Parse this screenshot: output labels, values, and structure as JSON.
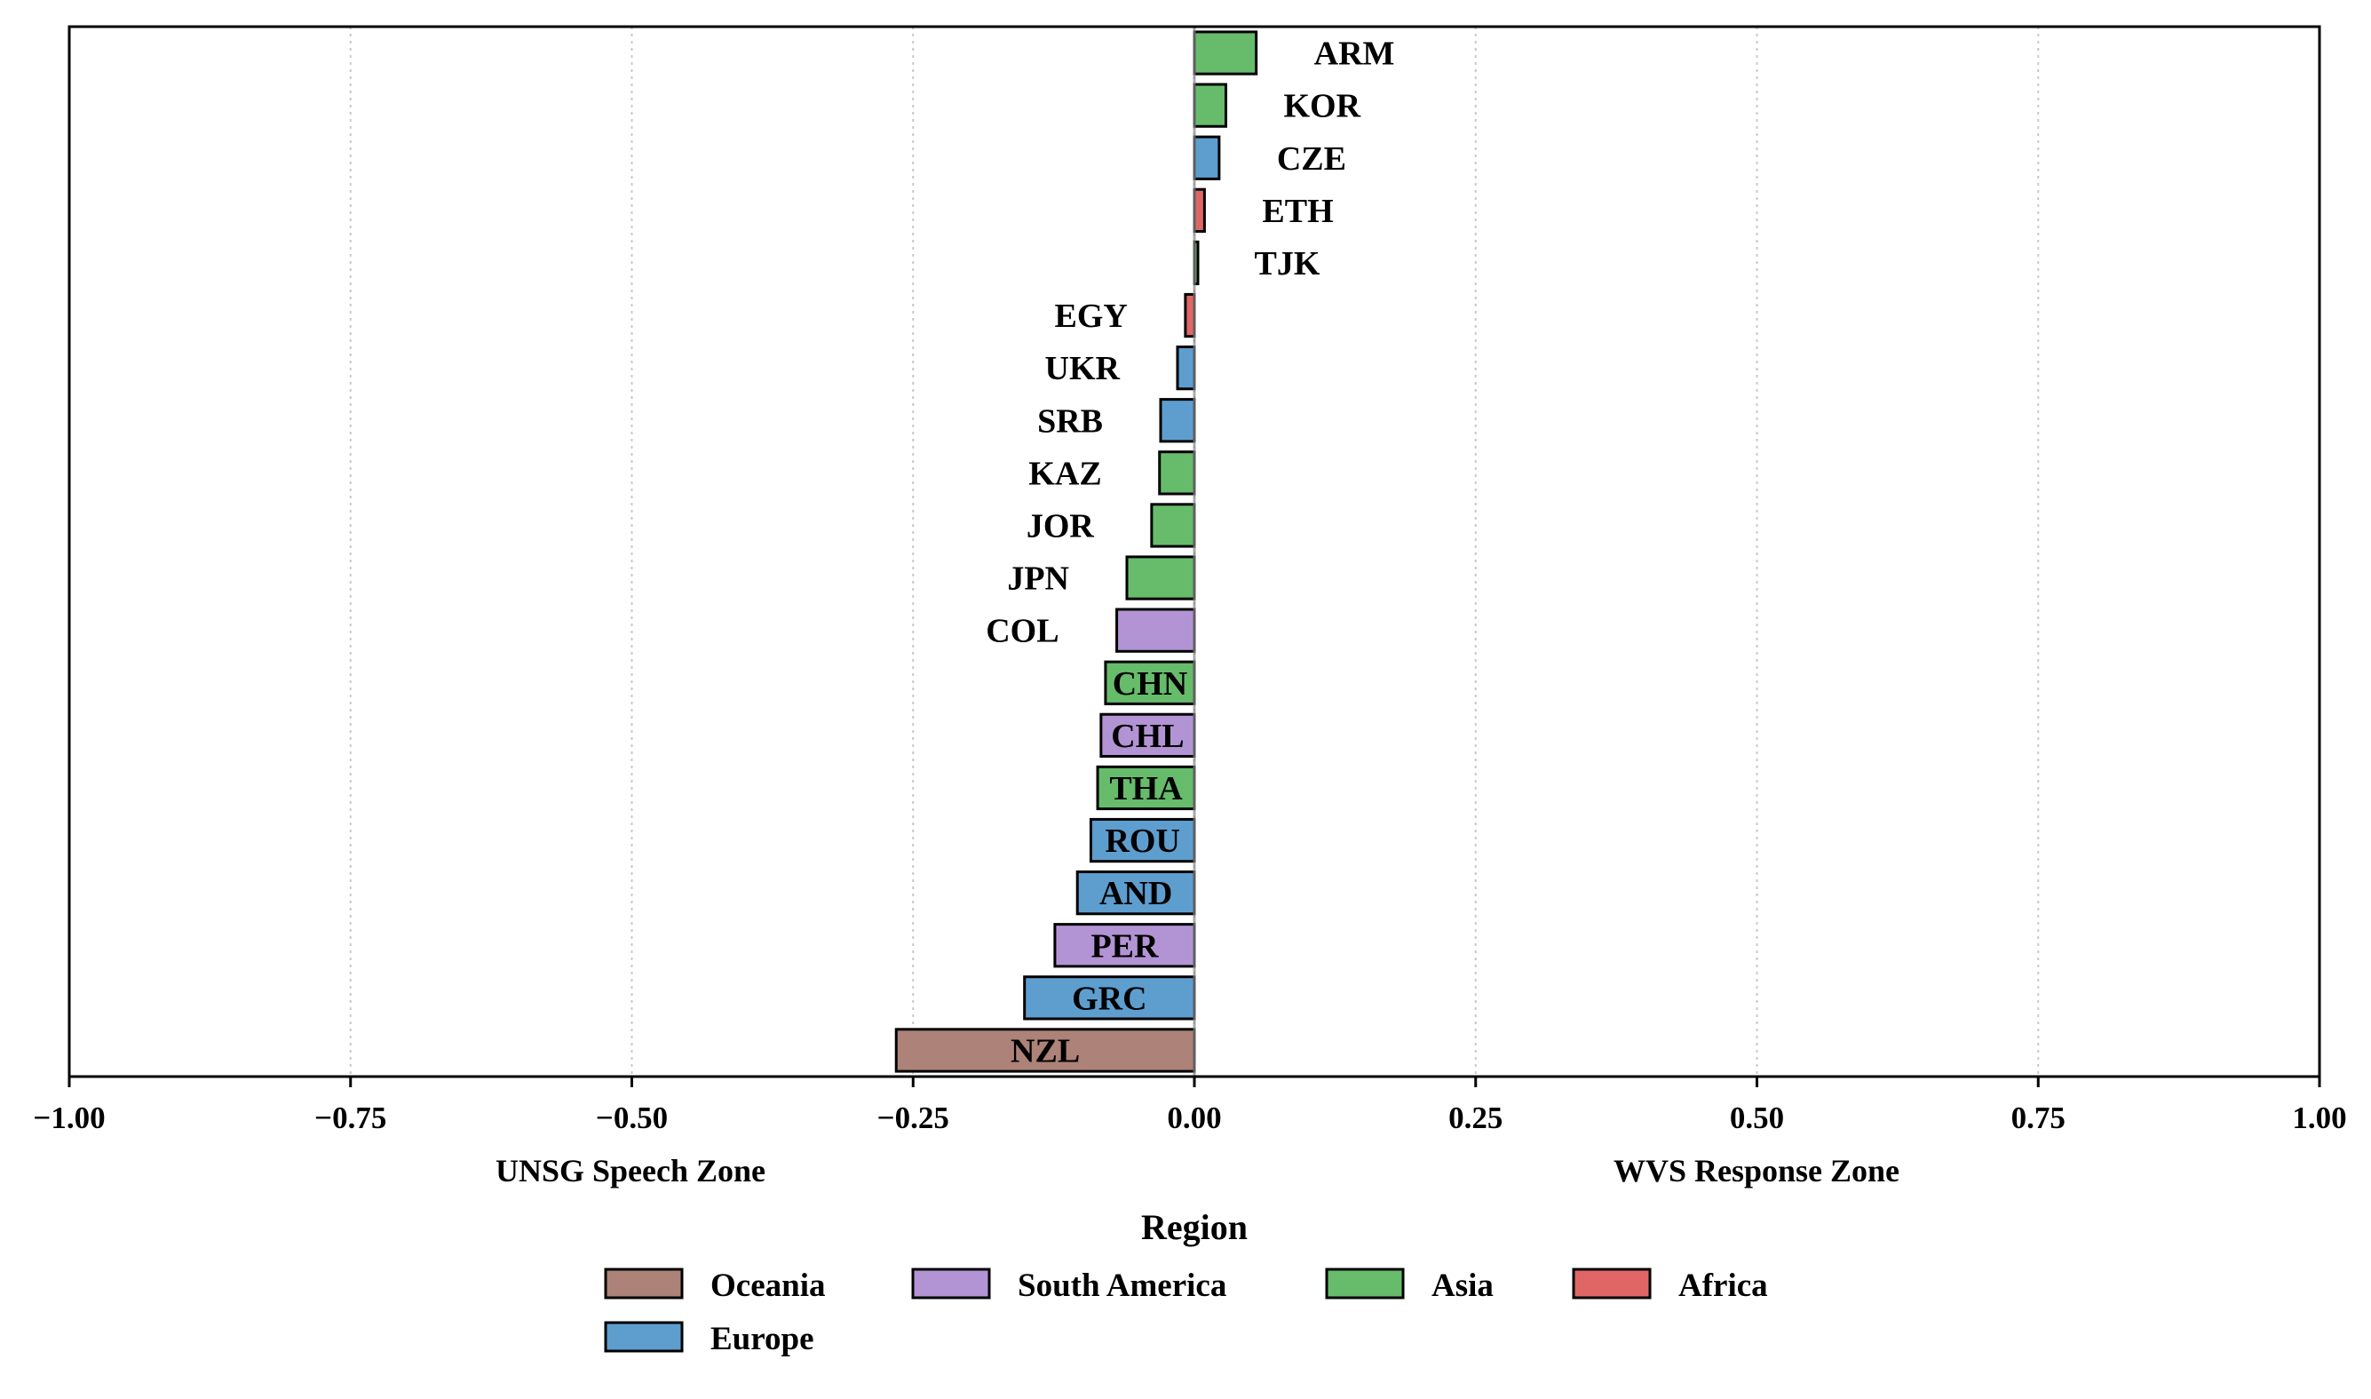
{
  "chart_data": {
    "type": "bar",
    "orientation": "horizontal",
    "xlim": [
      -1.0,
      1.0
    ],
    "x_ticks": [
      "−1.00",
      "−0.75",
      "−0.50",
      "−0.25",
      "0.00",
      "0.25",
      "0.50",
      "0.75",
      "1.00"
    ],
    "x_tick_values": [
      -1.0,
      -0.75,
      -0.5,
      -0.25,
      0.0,
      0.25,
      0.5,
      0.75,
      1.0
    ],
    "grid": "vertical dotted",
    "zone_labels": {
      "left": "UNSG Speech Zone",
      "right": "WVS Response Zone"
    },
    "legend": {
      "title": "Region",
      "placement": "bottom-center",
      "entries": [
        {
          "name": "Oceania",
          "color": "#ad8278"
        },
        {
          "name": "South America",
          "color": "#b294d4"
        },
        {
          "name": "Asia",
          "color": "#66bc6a"
        },
        {
          "name": "Africa",
          "color": "#e06666"
        },
        {
          "name": "Europe",
          "color": "#5d9ecf"
        }
      ]
    },
    "bars": [
      {
        "label": "ARM",
        "value": 0.055,
        "region": "Asia"
      },
      {
        "label": "KOR",
        "value": 0.028,
        "region": "Asia"
      },
      {
        "label": "CZE",
        "value": 0.022,
        "region": "Europe"
      },
      {
        "label": "ETH",
        "value": 0.009,
        "region": "Africa"
      },
      {
        "label": "TJK",
        "value": 0.002,
        "region": "Asia"
      },
      {
        "label": "EGY",
        "value": -0.008,
        "region": "Africa"
      },
      {
        "label": "UKR",
        "value": -0.015,
        "region": "Europe"
      },
      {
        "label": "SRB",
        "value": -0.03,
        "region": "Europe"
      },
      {
        "label": "KAZ",
        "value": -0.031,
        "region": "Asia"
      },
      {
        "label": "JOR",
        "value": -0.038,
        "region": "Asia"
      },
      {
        "label": "JPN",
        "value": -0.06,
        "region": "Asia"
      },
      {
        "label": "COL",
        "value": -0.069,
        "region": "South America"
      },
      {
        "label": "CHN",
        "value": -0.079,
        "region": "Asia"
      },
      {
        "label": "CHL",
        "value": -0.083,
        "region": "South America"
      },
      {
        "label": "THA",
        "value": -0.086,
        "region": "Asia"
      },
      {
        "label": "ROU",
        "value": -0.092,
        "region": "Europe"
      },
      {
        "label": "AND",
        "value": -0.104,
        "region": "Europe"
      },
      {
        "label": "PER",
        "value": -0.124,
        "region": "South America"
      },
      {
        "label": "GRC",
        "value": -0.151,
        "region": "Europe"
      },
      {
        "label": "NZL",
        "value": -0.265,
        "region": "Oceania"
      }
    ]
  }
}
